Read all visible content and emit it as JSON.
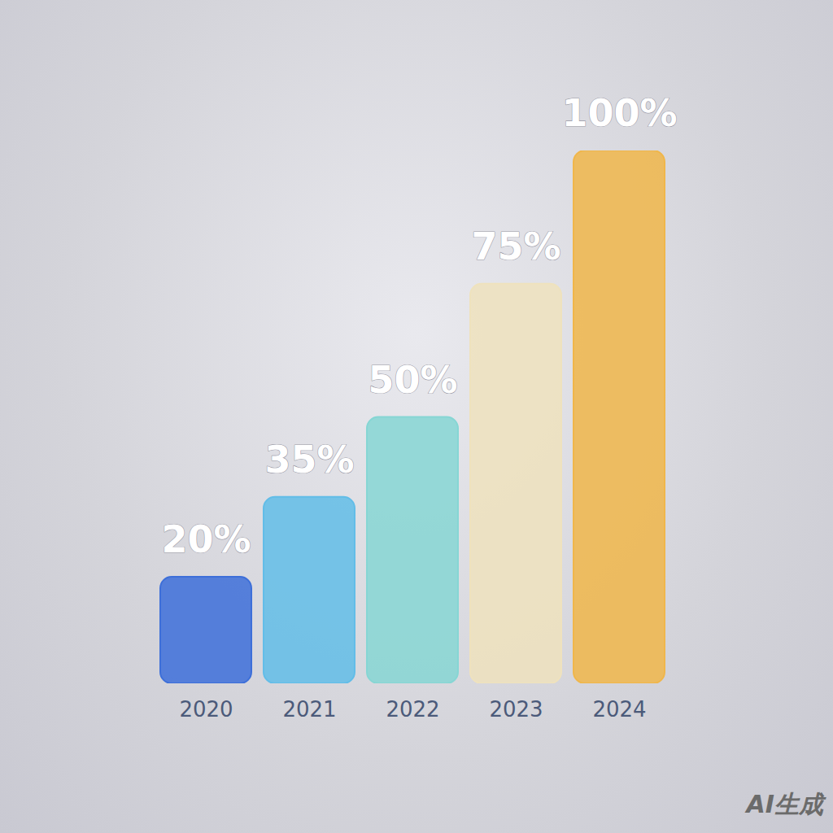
{
  "chart_data": {
    "type": "bar",
    "categories": [
      "2020",
      "2021",
      "2022",
      "2023",
      "2024"
    ],
    "values": [
      20,
      35,
      50,
      75,
      100
    ],
    "value_labels": [
      "20%",
      "35%",
      "50%",
      "75%",
      "100%"
    ],
    "colors": [
      "#3d6fd9",
      "#62bde8",
      "#86d6d4",
      "#efe2bd",
      "#f0b64a"
    ],
    "ylim": [
      0,
      100
    ],
    "data_labels": true,
    "tick_labels": "x",
    "annotations": [
      "AI生成"
    ]
  }
}
